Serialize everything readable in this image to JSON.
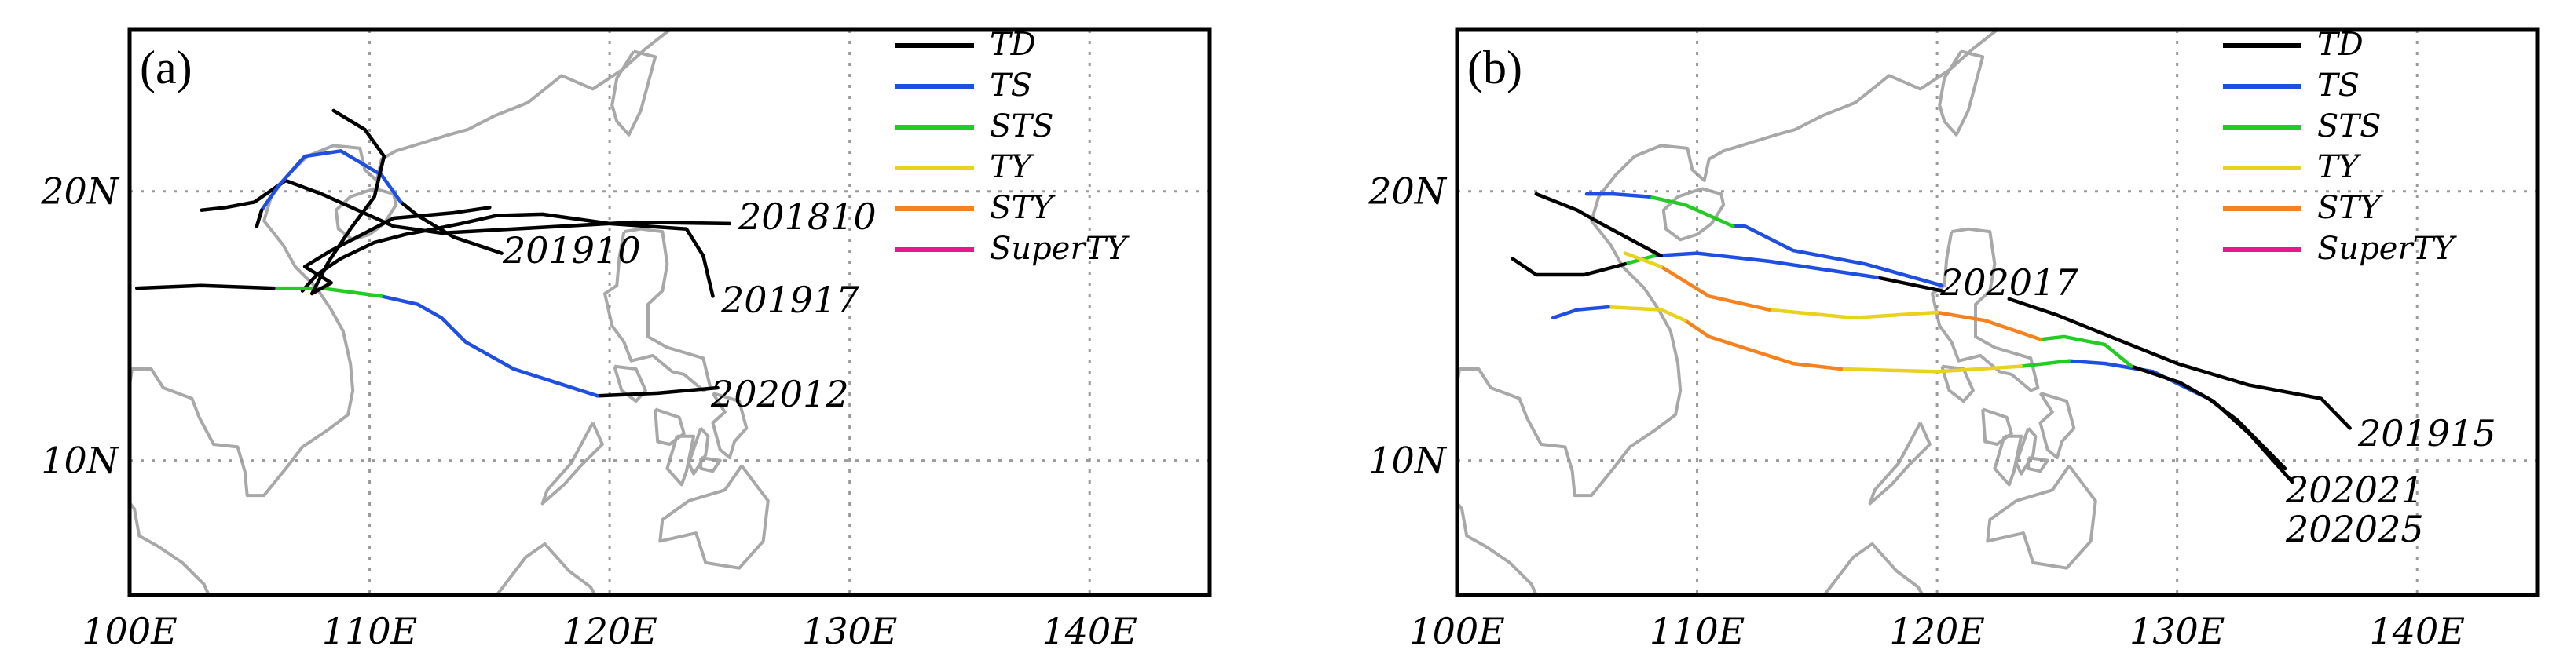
{
  "legend_categories": [
    {
      "name": "TD",
      "color": "#000000"
    },
    {
      "name": "TS",
      "color": "#1f4fe0"
    },
    {
      "name": "STS",
      "color": "#22cc22"
    },
    {
      "name": "TY",
      "color": "#e8d21e"
    },
    {
      "name": "STY",
      "color": "#f5821f"
    },
    {
      "name": "SuperTY",
      "color": "#e8178a"
    }
  ],
  "axes": {
    "lon_range": [
      100,
      145
    ],
    "lat_range": [
      5,
      26
    ],
    "x_ticks": [
      "100E",
      "110E",
      "120E",
      "130E",
      "140E"
    ],
    "y_ticks": [
      "10N",
      "20N"
    ],
    "gridlines": "dotted"
  },
  "panels": [
    {
      "label": "(a)",
      "tracks": [
        {
          "id": "201810",
          "segments": [
            {
              "cat": "TD",
              "pts": [
                [
                  125,
                  18.8
                ],
                [
                  121,
                  18.85
                ],
                [
                  116,
                  18.6
                ],
                [
                  113,
                  18.45
                ],
                [
                  111,
                  18.7
                ],
                [
                  110,
                  19.1
                ],
                [
                  108,
                  19.9
                ],
                [
                  106.5,
                  20.4
                ],
                [
                  105.2,
                  19.6
                ],
                [
                  104,
                  19.4
                ],
                [
                  103,
                  19.3
                ]
              ]
            }
          ]
        },
        {
          "id": "201910",
          "segments": [
            {
              "cat": "TD",
              "pts": [
                [
                  115.5,
                  17.7
                ],
                [
                  113.5,
                  18.3
                ],
                [
                  112,
                  19.1
                ],
                [
                  111.3,
                  19.6
                ]
              ]
            },
            {
              "cat": "TS",
              "pts": [
                [
                  111.3,
                  19.6
                ],
                [
                  110.5,
                  20.6
                ],
                [
                  108.8,
                  21.5
                ],
                [
                  107.3,
                  21.3
                ],
                [
                  106.2,
                  20.2
                ],
                [
                  105.5,
                  19.3
                ]
              ]
            },
            {
              "cat": "TD",
              "pts": [
                [
                  105.5,
                  19.3
                ],
                [
                  105.3,
                  18.7
                ]
              ]
            }
          ]
        },
        {
          "id": "201917",
          "segments": [
            {
              "cat": "TD",
              "pts": [
                [
                  124.3,
                  16.1
                ],
                [
                  123.9,
                  17.6
                ],
                [
                  123.2,
                  18.6
                ],
                [
                  120,
                  18.8
                ],
                [
                  117.2,
                  19.15
                ],
                [
                  115.3,
                  19.1
                ],
                [
                  113.8,
                  18.8
                ],
                [
                  112.7,
                  18.6
                ],
                [
                  111.5,
                  18.4
                ],
                [
                  110.2,
                  18.1
                ],
                [
                  108.8,
                  17.5
                ],
                [
                  107.8,
                  16.9
                ],
                [
                  107.2,
                  16.3
                ]
              ]
            }
          ]
        },
        {
          "id": "202012",
          "segments": [
            {
              "cat": "TD",
              "pts": [
                [
                  124.5,
                  12.7
                ],
                [
                  122,
                  12.5
                ],
                [
                  119.5,
                  12.4
                ]
              ]
            },
            {
              "cat": "TS",
              "pts": [
                [
                  119.5,
                  12.4
                ],
                [
                  116,
                  13.4
                ],
                [
                  114,
                  14.4
                ],
                [
                  113,
                  15.3
                ],
                [
                  112,
                  15.8
                ],
                [
                  110.5,
                  16.1
                ]
              ]
            },
            {
              "cat": "STS",
              "pts": [
                [
                  110.5,
                  16.1
                ],
                [
                  108,
                  16.4
                ],
                [
                  106,
                  16.4
                ]
              ]
            },
            {
              "cat": "TD",
              "pts": [
                [
                  106,
                  16.4
                ],
                [
                  103,
                  16.5
                ],
                [
                  100.3,
                  16.4
                ]
              ]
            }
          ]
        },
        {
          "id": "extra-a",
          "segments": [
            {
              "cat": "TD",
              "pts": [
                [
                  108.5,
                  23.0
                ],
                [
                  109.8,
                  22.3
                ],
                [
                  110.6,
                  21.3
                ],
                [
                  110.2,
                  19.8
                ],
                [
                  109.2,
                  18.6
                ],
                [
                  108.3,
                  17.4
                ],
                [
                  107.6,
                  16.2
                ],
                [
                  108.4,
                  16.6
                ],
                [
                  107.3,
                  17.2
                ],
                [
                  108.4,
                  17.8
                ],
                [
                  111,
                  19
                ],
                [
                  113.5,
                  19.2
                ],
                [
                  115,
                  19.4
                ]
              ]
            }
          ]
        }
      ],
      "track_labels": [
        "201810",
        "201910",
        "201917",
        "202012"
      ]
    },
    {
      "label": "(b)",
      "tracks": [
        {
          "id": "201915",
          "segments": [
            {
              "cat": "TD",
              "pts": [
                [
                  137.2,
                  11.2
                ],
                [
                  136,
                  12.3
                ],
                [
                  133,
                  12.8
                ],
                [
                  130,
                  13.6
                ],
                [
                  127.5,
                  14.5
                ],
                [
                  125,
                  15.4
                ],
                [
                  123,
                  16
                ]
              ]
            }
          ]
        },
        {
          "id": "202017",
          "segments": [
            {
              "cat": "TD",
              "pts": [
                [
                  120.2,
                  16.3
                ],
                [
                  117.5,
                  16.8
                ]
              ]
            },
            {
              "cat": "TS",
              "pts": [
                [
                  117.5,
                  16.8
                ],
                [
                  113,
                  17.4
                ],
                [
                  110,
                  17.7
                ],
                [
                  108.2,
                  17.6
                ]
              ]
            },
            {
              "cat": "STS",
              "pts": [
                [
                  108.2,
                  17.6
                ],
                [
                  107,
                  17.3
                ]
              ]
            },
            {
              "cat": "TD",
              "pts": [
                [
                  107,
                  17.3
                ],
                [
                  105.3,
                  16.9
                ],
                [
                  103.3,
                  16.9
                ],
                [
                  102.3,
                  17.5
                ]
              ]
            }
          ]
        },
        {
          "id": "202021",
          "segments": [
            {
              "cat": "TD",
              "pts": [
                [
                  134.5,
                  9.7
                ],
                [
                  132.5,
                  11.5
                ],
                [
                  131.3,
                  12.3
                ]
              ]
            },
            {
              "cat": "TS",
              "pts": [
                [
                  131.3,
                  12.3
                ],
                [
                  129,
                  13.3
                ],
                [
                  127,
                  13.6
                ],
                [
                  125.5,
                  13.7
                ]
              ]
            },
            {
              "cat": "STS",
              "pts": [
                [
                  125.5,
                  13.7
                ],
                [
                  123.5,
                  13.5
                ]
              ]
            },
            {
              "cat": "TY",
              "pts": [
                [
                  123.5,
                  13.5
                ],
                [
                  120,
                  13.3
                ],
                [
                  116,
                  13.4
                ]
              ]
            },
            {
              "cat": "STY",
              "pts": [
                [
                  116,
                  13.4
                ],
                [
                  114,
                  13.6
                ],
                [
                  110.5,
                  14.6
                ],
                [
                  109.5,
                  15.2
                ]
              ]
            },
            {
              "cat": "TY",
              "pts": [
                [
                  109.5,
                  15.2
                ],
                [
                  108.5,
                  15.6
                ],
                [
                  106.3,
                  15.7
                ]
              ]
            },
            {
              "cat": "TS",
              "pts": [
                [
                  106.3,
                  15.7
                ],
                [
                  105,
                  15.6
                ],
                [
                  104,
                  15.3
                ]
              ]
            }
          ]
        },
        {
          "id": "202025",
          "segments": [
            {
              "cat": "TD",
              "pts": [
                [
                  134.8,
                  9.2
                ],
                [
                  133,
                  11
                ],
                [
                  131.5,
                  12.2
                ],
                [
                  130.1,
                  12.9
                ],
                [
                  128.1,
                  13.5
                ]
              ]
            },
            {
              "cat": "STS",
              "pts": [
                [
                  128.1,
                  13.5
                ],
                [
                  127,
                  14.3
                ],
                [
                  125.3,
                  14.6
                ],
                [
                  124.3,
                  14.5
                ]
              ]
            },
            {
              "cat": "STY",
              "pts": [
                [
                  124.3,
                  14.5
                ],
                [
                  122,
                  15.2
                ],
                [
                  120,
                  15.5
                ]
              ]
            },
            {
              "cat": "TY",
              "pts": [
                [
                  120,
                  15.5
                ],
                [
                  116.5,
                  15.3
                ],
                [
                  113,
                  15.6
                ]
              ]
            },
            {
              "cat": "STY",
              "pts": [
                [
                  113,
                  15.6
                ],
                [
                  110.5,
                  16.1
                ],
                [
                  108.5,
                  17.2
                ]
              ]
            },
            {
              "cat": "TY",
              "pts": [
                [
                  108.5,
                  17.2
                ],
                [
                  107,
                  17.7
                ]
              ]
            }
          ]
        },
        {
          "id": "extra-b",
          "segments": [
            {
              "cat": "TD",
              "pts": [
                [
                  108.5,
                  17.6
                ],
                [
                  106,
                  18.8
                ],
                [
                  105,
                  19.3
                ],
                [
                  103.3,
                  19.9
                ]
              ]
            },
            {
              "cat": "TS",
              "pts": [
                [
                  120.2,
                  16.5
                ],
                [
                  117,
                  17.3
                ],
                [
                  114,
                  17.8
                ],
                [
                  112,
                  18.7
                ],
                [
                  111.5,
                  18.7
                ]
              ]
            },
            {
              "cat": "STS",
              "pts": [
                [
                  111.5,
                  18.7
                ],
                [
                  109.5,
                  19.5
                ],
                [
                  108,
                  19.8
                ]
              ]
            },
            {
              "cat": "TS",
              "pts": [
                [
                  108,
                  19.8
                ],
                [
                  106.5,
                  19.9
                ],
                [
                  105.4,
                  19.9
                ]
              ]
            }
          ]
        }
      ],
      "track_labels": [
        "202017",
        "201915",
        "202021",
        "202025"
      ]
    }
  ]
}
